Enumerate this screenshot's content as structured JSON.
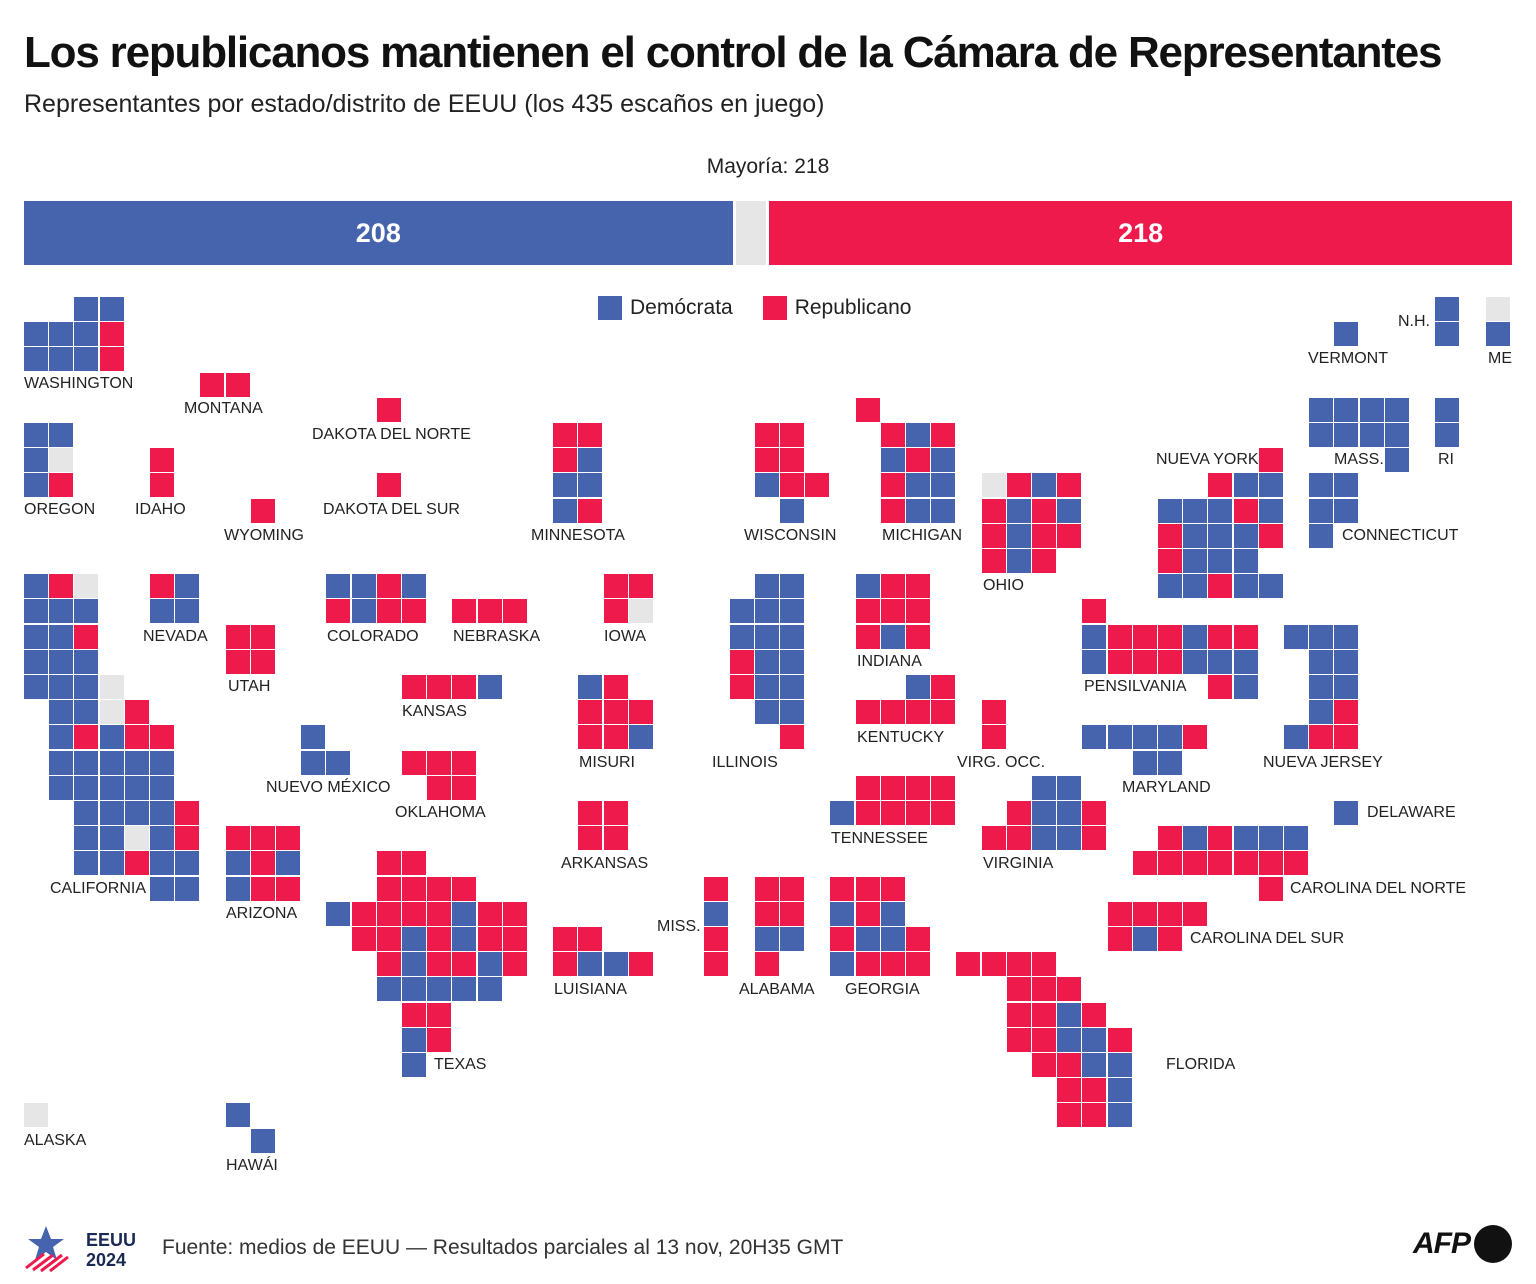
{
  "title": "Los republicanos mantienen el control de la Cámara de Representantes",
  "subtitle": "Representantes por estado/distrito de EEUU (los 435 escaños en juego)",
  "majority_label": "Mayoría: 218",
  "colors": {
    "dem": "#4664ad",
    "rep": "#ee1a4c",
    "pending": "#e6e6e6"
  },
  "totals": {
    "dem": 208,
    "pending": 9,
    "rep": 218,
    "dem_label": "208",
    "rep_label": "218"
  },
  "legend": {
    "dem": "Demócrata",
    "rep": "Republicano"
  },
  "footer": {
    "logo_line1": "EEUU",
    "logo_line2": "2024",
    "source": "Fuente: medios de EEUU — Resultados parciales al 13 nov, 20H35 GMT",
    "brand": "AFP"
  },
  "states": [
    {
      "name": "WASHINGTON",
      "label": "WASHINGTON",
      "cells": "..DD\nDDDR\nDDDR"
    },
    {
      "name": "MONTANA",
      "label": "MONTANA",
      "cells": "RR"
    },
    {
      "name": "DAKOTA DEL NORTE",
      "label": "DAKOTA DEL NORTE",
      "cells": "R"
    },
    {
      "name": "OREGON",
      "label": "OREGON",
      "cells": "DD\nDP\nDR"
    },
    {
      "name": "IDAHO",
      "label": "IDAHO",
      "cells": "R\nR"
    },
    {
      "name": "WYOMING",
      "label": "WYOMING",
      "cells": "R"
    },
    {
      "name": "DAKOTA DEL SUR",
      "label": "DAKOTA DEL SUR",
      "cells": "R"
    },
    {
      "name": "MINNESOTA",
      "label": "MINNESOTA",
      "cells": "RR\nRD\nDD\nDR"
    },
    {
      "name": "WISCONSIN",
      "label": "WISCONSIN",
      "cells": "RR.\nRR.\nDRR\n.D."
    },
    {
      "name": "MICHIGAN",
      "label": "MICHIGAN",
      "cells": "R...\n.RDR\n.DRD\n.RDD\n.RDD"
    },
    {
      "name": "OHIO",
      "label": "OHIO",
      "cells": "PRDR\nRDRD\nRDRR\nRDR."
    },
    {
      "name": "NUEVA YORK",
      "label": "NUEVA YORK",
      "cells": "....R\n..RDD\nDDDRD\nRDDDR\nRDDD.\nDDRDD"
    },
    {
      "name": "VERMONT",
      "label": "VERMONT",
      "cells": "D"
    },
    {
      "name": "N.H.",
      "label": "N.H.",
      "cells": "D\nD"
    },
    {
      "name": "ME",
      "label": "ME",
      "cells": "P\nD"
    },
    {
      "name": "MASS.",
      "label": "MASS.",
      "cells": "DDDD\nDDDD\n...D"
    },
    {
      "name": "RI",
      "label": "RI",
      "cells": "D\nD"
    },
    {
      "name": "CONNECTICUT",
      "label": "CONNECTICUT",
      "cells": "DD\nDD\nD."
    },
    {
      "name": "CALIFORNIA",
      "label": "CALIFORNIA",
      "cells": "DRP...\nDDD...\nDDR...\nDDD...\nDDDP..\n.DDPR.\n.DRDRR\n.DDDDD\n.DDDDD\n..DDDDR\n..DDPDR\n..DDRDD\n.....DD"
    },
    {
      "name": "NEVADA",
      "label": "NEVADA",
      "cells": "RD\nDD"
    },
    {
      "name": "UTAH",
      "label": "UTAH",
      "cells": "RR\nRR"
    },
    {
      "name": "COLORADO",
      "label": "COLORADO",
      "cells": "DDRD\nRDRR"
    },
    {
      "name": "NEBRASKA",
      "label": "NEBRASKA",
      "cells": "RRR"
    },
    {
      "name": "IOWA",
      "label": "IOWA",
      "cells": "RR\nRP"
    },
    {
      "name": "KANSAS",
      "label": "KANSAS",
      "cells": "RRRD"
    },
    {
      "name": "ARIZONA",
      "label": "ARIZONA",
      "cells": "RRR\nDRD\nDRR"
    },
    {
      "name": "NUEVO MÉXICO",
      "label": "NUEVO MÉXICO",
      "cells": "D.\nDD"
    },
    {
      "name": "OKLAHOMA",
      "label": "OKLAHOMA",
      "cells": "RRR\n.RR"
    },
    {
      "name": "MISURI",
      "label": "MISURI",
      "cells": "DR.\nRRR\nRRD"
    },
    {
      "name": "ARKANSAS",
      "label": "ARKANSAS",
      "cells": "RR\nRR"
    },
    {
      "name": "ILLINOIS",
      "label": "ILLINOIS",
      "cells": "..DD\n.DDD\n.DDD\n.RDD\n.RDD\n..DD\n...R"
    },
    {
      "name": "INDIANA",
      "label": "INDIANA",
      "cells": "DRR\nRRR\nRDR"
    },
    {
      "name": "KENTUCKY",
      "label": "KENTUCKY",
      "cells": "..DR\nRRRR"
    },
    {
      "name": "VIRG. OCC.",
      "label": "VIRG. OCC.",
      "cells": "R\nR"
    },
    {
      "name": "PENSILVANIA",
      "label": "PENSILVANIA",
      "cells": "R.......\nDRRRDRR.\nDRRRDDD.\n.....RD."
    },
    {
      "name": "NUEVA JERSEY",
      "label": "NUEVA JERSEY",
      "cells": "DDD\n.DD\n.DD\n.DR\nDRR"
    },
    {
      "name": "MARYLAND",
      "label": "MARYLAND",
      "cells": "DDDDR\n..DD."
    },
    {
      "name": "DELAWARE",
      "label": "DELAWARE",
      "cells": "D"
    },
    {
      "name": "TENNESSEE",
      "label": "TENNESSEE",
      "cells": ".RRRR\nDRRRR"
    },
    {
      "name": "VIRGINIA",
      "label": "VIRGINIA",
      "cells": "..DD.\n.RDDR\nRRDDR"
    },
    {
      "name": "CAROLINA DEL NORTE",
      "label": "CAROLINA DEL NORTE",
      "cells": ".RDRDDD\nRRRRRRR\n.....R."
    },
    {
      "name": "CAROLINA DEL SUR",
      "label": "CAROLINA DEL SUR",
      "cells": "RRRR\nRDR."
    },
    {
      "name": "TEXAS",
      "label": "TEXAS",
      "cells": "..RR....\n..RRRR..\nDRRRRDRR\n.RRDRDRR\n..RDRRDR\n..DDDDD.\n...RR...\n...DR...\n...D...."
    },
    {
      "name": "LUISIANA",
      "label": "LUISIANA",
      "cells": "RR..\nRDDR"
    },
    {
      "name": "MISS.",
      "label": "MISS.",
      "cells": "R\nD\nR\nR"
    },
    {
      "name": "ALABAMA",
      "label": "ALABAMA",
      "cells": "RR\nRR\nDD\nR."
    },
    {
      "name": "GEORGIA",
      "label": "GEORGIA",
      "cells": "RRR.\nDRD.\nRDDR\nDRRR"
    },
    {
      "name": "FLORIDA",
      "label": "FLORIDA",
      "cells": "RRRR..\n..RRR.\n..RRDR\n..RRDDR\n...RRDD\n....RRD\n....RRD"
    },
    {
      "name": "ALASKA",
      "label": "ALASKA",
      "cells": "P"
    },
    {
      "name": "HAWÁI",
      "label": "HAWÁI",
      "cells": "D.\n.D"
    }
  ]
}
